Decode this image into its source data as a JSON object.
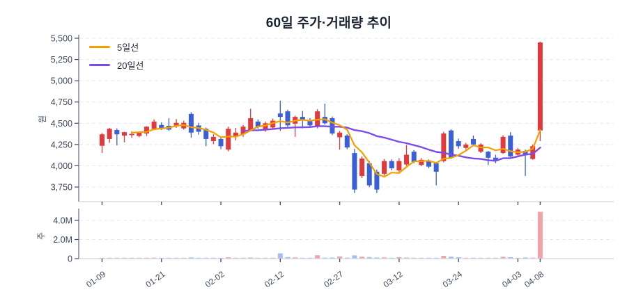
{
  "title": "60일 주가·거래량 추이",
  "legend": {
    "items": [
      {
        "label": "5일선",
        "color": "#f59f00"
      },
      {
        "label": "20일선",
        "color": "#7c4de6"
      }
    ]
  },
  "price_axis": {
    "unit": "원",
    "tick_labels": [
      "5,500",
      "5,250",
      "5,000",
      "4,750",
      "4,500",
      "4,250",
      "4,000",
      "3,750"
    ],
    "tick_values": [
      5500,
      5250,
      5000,
      4750,
      4500,
      4250,
      4000,
      3750
    ]
  },
  "volume_axis": {
    "unit": "주",
    "tick_labels": [
      "4.0M",
      "2.0M",
      "0"
    ],
    "tick_values": [
      4000000,
      2000000,
      0
    ]
  },
  "x_axis": {
    "tick_labels": [
      "01-09",
      "01-21",
      "02-02",
      "02-12",
      "02-27",
      "03-12",
      "03-24",
      "04-03",
      "04-08"
    ],
    "tick_indices": [
      0,
      8,
      16,
      24,
      32,
      40,
      48,
      56,
      59
    ]
  },
  "colors": {
    "up": "#e03a3e",
    "down": "#3a5fd7",
    "volume_up": "#f2a3a8",
    "volume_down": "#a7bdf2",
    "ma5": "#f59f00",
    "ma20": "#7c4de6",
    "grid": "#e4e8ef",
    "spine": "#5f6b80",
    "axis_line": "#cfd6e0",
    "tick_mark": "#44506a",
    "tick_text": "#3c485e"
  },
  "chart_data": {
    "type": "candlestick+volume",
    "title": "60일 주가·거래량 추이",
    "price_ylim": [
      3580,
      5540
    ],
    "volume_ylim": [
      0,
      5300000
    ],
    "grid": true,
    "legend_position": "top-left",
    "ma_periods": [
      5,
      20
    ],
    "ohlc": [
      [
        4235,
        4385,
        4150,
        4370
      ],
      [
        4315,
        4445,
        4270,
        4435
      ],
      [
        4420,
        4440,
        4240,
        4370
      ],
      [
        4355,
        4400,
        4275,
        4395
      ],
      [
        4360,
        4405,
        4330,
        4375
      ],
      [
        4350,
        4400,
        4335,
        4395
      ],
      [
        4380,
        4465,
        4350,
        4460
      ],
      [
        4435,
        4545,
        4420,
        4520
      ],
      [
        4480,
        4510,
        4420,
        4440
      ],
      [
        4470,
        4560,
        4410,
        4425
      ],
      [
        4465,
        4550,
        4445,
        4505
      ],
      [
        4440,
        4530,
        4425,
        4505
      ],
      [
        4610,
        4630,
        4330,
        4390
      ],
      [
        4475,
        4505,
        4365,
        4400
      ],
      [
        4435,
        4450,
        4230,
        4315
      ],
      [
        4290,
        4370,
        4255,
        4340
      ],
      [
        4315,
        4345,
        4195,
        4230
      ],
      [
        4190,
        4460,
        4170,
        4435
      ],
      [
        4350,
        4445,
        4300,
        4390
      ],
      [
        4370,
        4480,
        4340,
        4460
      ],
      [
        4420,
        4670,
        4405,
        4560
      ],
      [
        4520,
        4545,
        4435,
        4460
      ],
      [
        4425,
        4520,
        4400,
        4500
      ],
      [
        4450,
        4555,
        4430,
        4530
      ],
      [
        4615,
        4765,
        4410,
        4575
      ],
      [
        4640,
        4660,
        4455,
        4475
      ],
      [
        4495,
        4590,
        4340,
        4575
      ],
      [
        4575,
        4645,
        4440,
        4545
      ],
      [
        4535,
        4560,
        4455,
        4475
      ],
      [
        4460,
        4665,
        4440,
        4640
      ],
      [
        4575,
        4730,
        4485,
        4500
      ],
      [
        4560,
        4580,
        4360,
        4380
      ],
      [
        4335,
        4410,
        4190,
        4390
      ],
      [
        4355,
        4370,
        4195,
        4215
      ],
      [
        4150,
        4200,
        3680,
        3720
      ],
      [
        3880,
        4110,
        3855,
        4085
      ],
      [
        4030,
        4055,
        3750,
        3770
      ],
      [
        3930,
        3955,
        3680,
        3720
      ],
      [
        3905,
        4080,
        3885,
        4055
      ],
      [
        4055,
        4075,
        3945,
        3970
      ],
      [
        3945,
        4090,
        3930,
        4055
      ],
      [
        4015,
        4245,
        4000,
        4130
      ],
      [
        4165,
        4185,
        4030,
        4045
      ],
      [
        4010,
        4090,
        3995,
        4070
      ],
      [
        4055,
        4075,
        3970,
        3990
      ],
      [
        4030,
        4045,
        3770,
        3930
      ],
      [
        4055,
        4400,
        4040,
        4380
      ],
      [
        4415,
        4430,
        4080,
        4095
      ],
      [
        4290,
        4320,
        4200,
        4230
      ],
      [
        4210,
        4270,
        4190,
        4250
      ],
      [
        4315,
        4355,
        4240,
        4250
      ],
      [
        4165,
        4265,
        4150,
        4250
      ],
      [
        4165,
        4175,
        4010,
        4095
      ],
      [
        4095,
        4130,
        4030,
        4060
      ],
      [
        4150,
        4360,
        4140,
        4340
      ],
      [
        4355,
        4395,
        4100,
        4110
      ],
      [
        4130,
        4210,
        4120,
        4190
      ],
      [
        4175,
        4190,
        3880,
        4125
      ],
      [
        4080,
        4250,
        4070,
        4230
      ],
      [
        4415,
        5460,
        4290,
        5450
      ]
    ],
    "volume": [
      60000,
      85000,
      45000,
      50000,
      30000,
      38000,
      55000,
      95000,
      60000,
      70000,
      52000,
      48000,
      125000,
      65000,
      80000,
      58000,
      75000,
      140000,
      60000,
      72000,
      115000,
      55000,
      65000,
      90000,
      550000,
      160000,
      130000,
      72000,
      60000,
      350000,
      95000,
      115000,
      230000,
      100000,
      340000,
      200000,
      160000,
      120000,
      130000,
      70000,
      150000,
      110000,
      90000,
      62000,
      55000,
      82000,
      290000,
      200000,
      140000,
      70000,
      92000,
      75000,
      85000,
      50000,
      190000,
      150000,
      65000,
      120000,
      95000,
      4900000
    ]
  }
}
